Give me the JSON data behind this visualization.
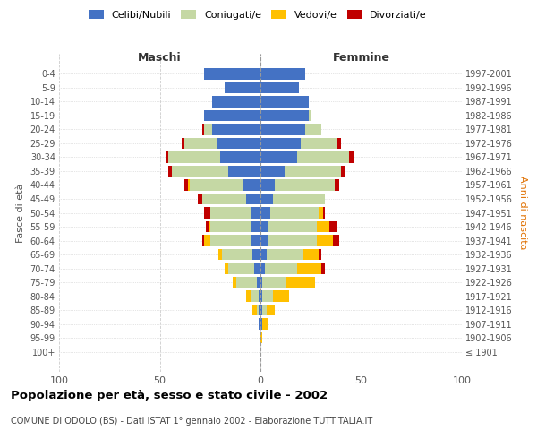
{
  "age_groups": [
    "100+",
    "95-99",
    "90-94",
    "85-89",
    "80-84",
    "75-79",
    "70-74",
    "65-69",
    "60-64",
    "55-59",
    "50-54",
    "45-49",
    "40-44",
    "35-39",
    "30-34",
    "25-29",
    "20-24",
    "15-19",
    "10-14",
    "5-9",
    "0-4"
  ],
  "birth_years": [
    "≤ 1901",
    "1902-1906",
    "1907-1911",
    "1912-1916",
    "1917-1921",
    "1922-1926",
    "1927-1931",
    "1932-1936",
    "1937-1941",
    "1942-1946",
    "1947-1951",
    "1952-1956",
    "1957-1961",
    "1962-1966",
    "1967-1971",
    "1972-1976",
    "1977-1981",
    "1982-1986",
    "1987-1991",
    "1992-1996",
    "1997-2001"
  ],
  "male_celibe": [
    0,
    0,
    1,
    1,
    1,
    2,
    3,
    4,
    5,
    5,
    5,
    7,
    9,
    16,
    20,
    22,
    24,
    28,
    24,
    18,
    28
  ],
  "male_coniugato": [
    0,
    0,
    0,
    1,
    4,
    10,
    13,
    15,
    20,
    20,
    20,
    22,
    26,
    28,
    26,
    16,
    4,
    0,
    0,
    0,
    0
  ],
  "male_vedovo": [
    0,
    0,
    0,
    2,
    2,
    2,
    2,
    2,
    3,
    1,
    0,
    0,
    1,
    0,
    0,
    0,
    0,
    0,
    0,
    0,
    0
  ],
  "male_divorziato": [
    0,
    0,
    0,
    0,
    0,
    0,
    0,
    0,
    1,
    1,
    3,
    2,
    2,
    2,
    1,
    1,
    1,
    0,
    0,
    0,
    0
  ],
  "female_celibe": [
    0,
    0,
    1,
    1,
    1,
    1,
    2,
    3,
    4,
    4,
    5,
    6,
    7,
    12,
    18,
    20,
    22,
    24,
    24,
    19,
    22
  ],
  "female_coniugato": [
    0,
    0,
    0,
    2,
    5,
    12,
    16,
    18,
    24,
    24,
    24,
    26,
    30,
    28,
    26,
    18,
    8,
    1,
    0,
    0,
    0
  ],
  "female_vedovo": [
    0,
    1,
    3,
    4,
    8,
    14,
    12,
    8,
    8,
    6,
    2,
    0,
    0,
    0,
    0,
    0,
    0,
    0,
    0,
    0,
    0
  ],
  "female_divorziato": [
    0,
    0,
    0,
    0,
    0,
    0,
    2,
    1,
    3,
    4,
    1,
    0,
    2,
    2,
    2,
    2,
    0,
    0,
    0,
    0,
    0
  ],
  "colors": {
    "celibe": "#4472c4",
    "coniugato": "#c5d8a4",
    "vedovo": "#ffc000",
    "divorziato": "#c00000"
  },
  "xlim": 100,
  "title": "Popolazione per età, sesso e stato civile - 2002",
  "subtitle": "COMUNE DI ODOLO (BS) - Dati ISTAT 1° gennaio 2002 - Elaborazione TUTTITALIA.IT",
  "xlabel_left": "Maschi",
  "xlabel_right": "Femmine",
  "ylabel_left": "Fasce di età",
  "ylabel_right": "Anni di nascita",
  "bg_color": "#ffffff",
  "grid_color": "#cccccc",
  "legend": [
    "Celibi/Nubili",
    "Coniugati/e",
    "Vedovi/e",
    "Divorziati/e"
  ]
}
